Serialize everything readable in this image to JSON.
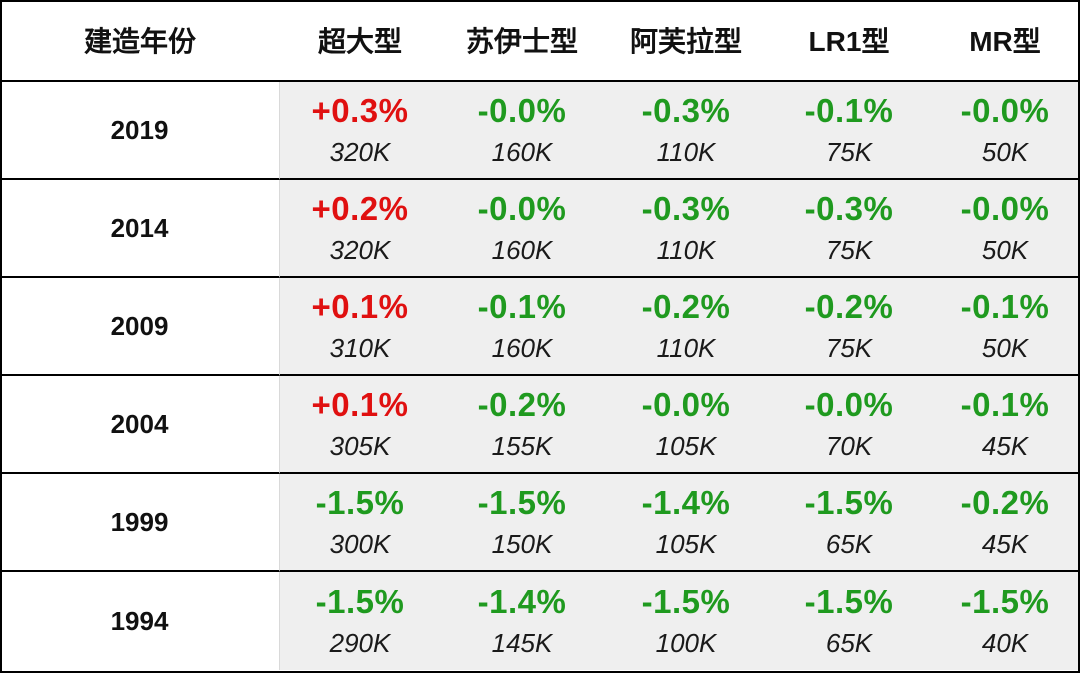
{
  "table": {
    "headers": [
      "建造年份",
      "超大型",
      "苏伊士型",
      "阿芙拉型",
      "LR1型",
      "MR型"
    ],
    "rows": [
      {
        "year": "2019",
        "cells": [
          {
            "pct": "+0.3%",
            "vol": "320K",
            "trend": "up"
          },
          {
            "pct": "-0.0%",
            "vol": "160K",
            "trend": "down"
          },
          {
            "pct": "-0.3%",
            "vol": "110K",
            "trend": "down"
          },
          {
            "pct": "-0.1%",
            "vol": "75K",
            "trend": "down"
          },
          {
            "pct": "-0.0%",
            "vol": "50K",
            "trend": "down"
          }
        ]
      },
      {
        "year": "2014",
        "cells": [
          {
            "pct": "+0.2%",
            "vol": "320K",
            "trend": "up"
          },
          {
            "pct": "-0.0%",
            "vol": "160K",
            "trend": "down"
          },
          {
            "pct": "-0.3%",
            "vol": "110K",
            "trend": "down"
          },
          {
            "pct": "-0.3%",
            "vol": "75K",
            "trend": "down"
          },
          {
            "pct": "-0.0%",
            "vol": "50K",
            "trend": "down"
          }
        ]
      },
      {
        "year": "2009",
        "cells": [
          {
            "pct": "+0.1%",
            "vol": "310K",
            "trend": "up"
          },
          {
            "pct": "-0.1%",
            "vol": "160K",
            "trend": "down"
          },
          {
            "pct": "-0.2%",
            "vol": "110K",
            "trend": "down"
          },
          {
            "pct": "-0.2%",
            "vol": "75K",
            "trend": "down"
          },
          {
            "pct": "-0.1%",
            "vol": "50K",
            "trend": "down"
          }
        ]
      },
      {
        "year": "2004",
        "cells": [
          {
            "pct": "+0.1%",
            "vol": "305K",
            "trend": "up"
          },
          {
            "pct": "-0.2%",
            "vol": "155K",
            "trend": "down"
          },
          {
            "pct": "-0.0%",
            "vol": "105K",
            "trend": "down"
          },
          {
            "pct": "-0.0%",
            "vol": "70K",
            "trend": "down"
          },
          {
            "pct": "-0.1%",
            "vol": "45K",
            "trend": "down"
          }
        ]
      },
      {
        "year": "1999",
        "cells": [
          {
            "pct": "-1.5%",
            "vol": "300K",
            "trend": "down"
          },
          {
            "pct": "-1.5%",
            "vol": "150K",
            "trend": "down"
          },
          {
            "pct": "-1.4%",
            "vol": "105K",
            "trend": "down"
          },
          {
            "pct": "-1.5%",
            "vol": "65K",
            "trend": "down"
          },
          {
            "pct": "-0.2%",
            "vol": "45K",
            "trend": "down"
          }
        ]
      },
      {
        "year": "1994",
        "cells": [
          {
            "pct": "-1.5%",
            "vol": "290K",
            "trend": "down"
          },
          {
            "pct": "-1.4%",
            "vol": "145K",
            "trend": "down"
          },
          {
            "pct": "-1.5%",
            "vol": "100K",
            "trend": "down"
          },
          {
            "pct": "-1.5%",
            "vol": "65K",
            "trend": "down"
          },
          {
            "pct": "-1.5%",
            "vol": "40K",
            "trend": "down"
          }
        ]
      }
    ]
  },
  "colors": {
    "positive": "#e01010",
    "negative": "#1f9a1f",
    "cell_background": "#efefef",
    "border": "#000000"
  }
}
